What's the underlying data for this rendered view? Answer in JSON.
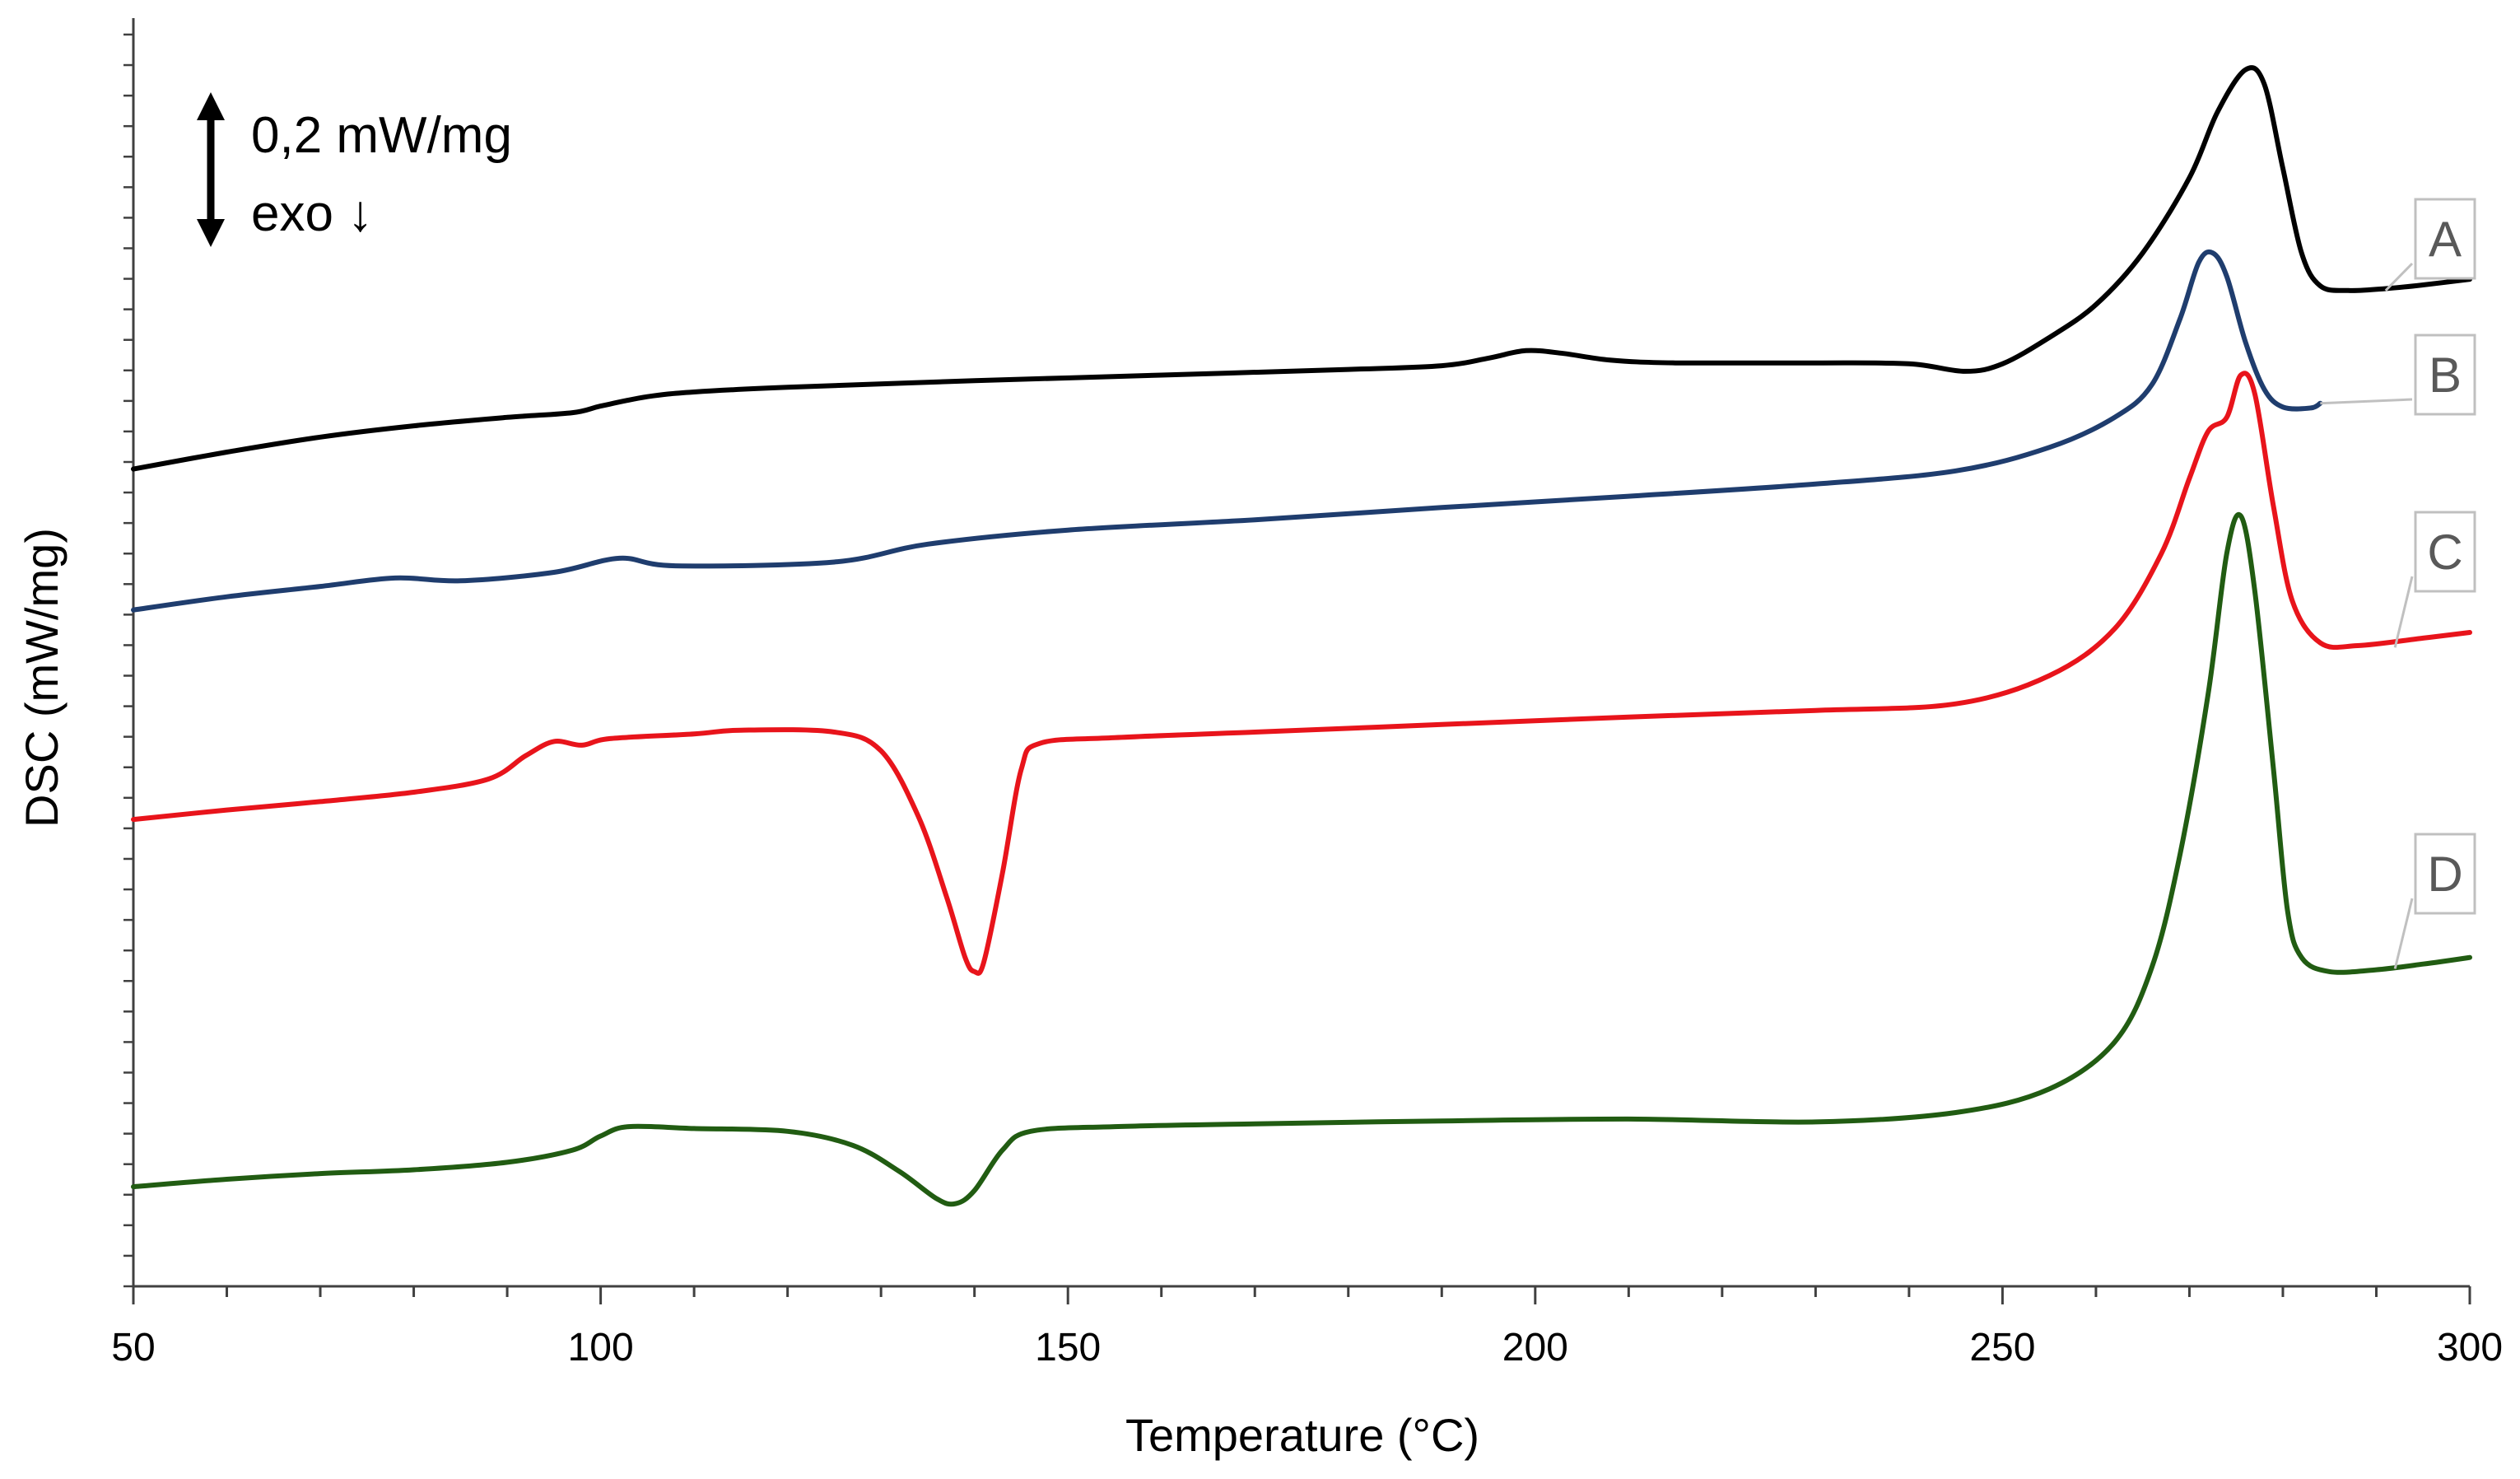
{
  "chart_data": {
    "type": "line",
    "title": "",
    "xlabel": "Temperature (°C)",
    "ylabel": "DSC (mW/mg)",
    "xlim": [
      50,
      300
    ],
    "ylim": [
      0,
      13.5
    ],
    "xticks": [
      50,
      100,
      150,
      200,
      250,
      300
    ],
    "x_minor_step": 10,
    "y_minor_step": 0.325,
    "grid": false,
    "legend": "none",
    "scale_bar": {
      "label": "0,2 mW/mg",
      "exo_label": "exo ↓"
    },
    "series": [
      {
        "name": "A",
        "color": "#000000",
        "points": [
          [
            50,
            8.7
          ],
          [
            60,
            8.88
          ],
          [
            70,
            9.04
          ],
          [
            80,
            9.16
          ],
          [
            90,
            9.25
          ],
          [
            97,
            9.3
          ],
          [
            100,
            9.37
          ],
          [
            105,
            9.47
          ],
          [
            110,
            9.52
          ],
          [
            120,
            9.57
          ],
          [
            140,
            9.64
          ],
          [
            160,
            9.7
          ],
          [
            180,
            9.76
          ],
          [
            190,
            9.8
          ],
          [
            195,
            9.88
          ],
          [
            199,
            9.96
          ],
          [
            203,
            9.93
          ],
          [
            208,
            9.86
          ],
          [
            215,
            9.83
          ],
          [
            230,
            9.83
          ],
          [
            240,
            9.82
          ],
          [
            246,
            9.74
          ],
          [
            250,
            9.82
          ],
          [
            255,
            10.1
          ],
          [
            260,
            10.45
          ],
          [
            265,
            11.0
          ],
          [
            270,
            11.8
          ],
          [
            273,
            12.5
          ],
          [
            276,
            12.95
          ],
          [
            278,
            12.8
          ],
          [
            280,
            11.9
          ],
          [
            282,
            11.0
          ],
          [
            284,
            10.65
          ],
          [
            287,
            10.6
          ],
          [
            291,
            10.62
          ],
          [
            295,
            10.66
          ],
          [
            300,
            10.72
          ]
        ]
      },
      {
        "name": "B",
        "color": "#1f3d6e",
        "points": [
          [
            50,
            7.2
          ],
          [
            60,
            7.34
          ],
          [
            70,
            7.45
          ],
          [
            78,
            7.54
          ],
          [
            85,
            7.51
          ],
          [
            95,
            7.6
          ],
          [
            102,
            7.75
          ],
          [
            108,
            7.67
          ],
          [
            125,
            7.71
          ],
          [
            135,
            7.9
          ],
          [
            150,
            8.05
          ],
          [
            170,
            8.16
          ],
          [
            190,
            8.29
          ],
          [
            210,
            8.41
          ],
          [
            230,
            8.54
          ],
          [
            245,
            8.68
          ],
          [
            255,
            8.93
          ],
          [
            262,
            9.25
          ],
          [
            266,
            9.6
          ],
          [
            269,
            10.3
          ],
          [
            271,
            10.9
          ],
          [
            272.5,
            11.0
          ],
          [
            274,
            10.75
          ],
          [
            276,
            10.05
          ],
          [
            278,
            9.55
          ],
          [
            280,
            9.36
          ],
          [
            283,
            9.35
          ],
          [
            284,
            9.4
          ]
        ]
      },
      {
        "name": "C",
        "color": "#e8141b",
        "points": [
          [
            50,
            4.97
          ],
          [
            60,
            5.07
          ],
          [
            70,
            5.16
          ],
          [
            80,
            5.26
          ],
          [
            88,
            5.4
          ],
          [
            92,
            5.65
          ],
          [
            95,
            5.8
          ],
          [
            98,
            5.76
          ],
          [
            101,
            5.83
          ],
          [
            110,
            5.88
          ],
          [
            115,
            5.92
          ],
          [
            125,
            5.9
          ],
          [
            130,
            5.7
          ],
          [
            134,
            5.0
          ],
          [
            137,
            4.15
          ],
          [
            139,
            3.5
          ],
          [
            140,
            3.35
          ],
          [
            141,
            3.45
          ],
          [
            143,
            4.4
          ],
          [
            145,
            5.5
          ],
          [
            147,
            5.78
          ],
          [
            155,
            5.84
          ],
          [
            170,
            5.9
          ],
          [
            190,
            5.98
          ],
          [
            210,
            6.06
          ],
          [
            230,
            6.13
          ],
          [
            245,
            6.2
          ],
          [
            255,
            6.5
          ],
          [
            262,
            7.0
          ],
          [
            267,
            7.8
          ],
          [
            270,
            8.6
          ],
          [
            272,
            9.1
          ],
          [
            274,
            9.25
          ],
          [
            275.5,
            9.7
          ],
          [
            277,
            9.5
          ],
          [
            279,
            8.3
          ],
          [
            281,
            7.3
          ],
          [
            284,
            6.85
          ],
          [
            288,
            6.82
          ],
          [
            295,
            6.9
          ],
          [
            300,
            6.96
          ]
        ]
      },
      {
        "name": "D",
        "color": "#215c12",
        "points": [
          [
            50,
            1.06
          ],
          [
            60,
            1.14
          ],
          [
            70,
            1.2
          ],
          [
            80,
            1.24
          ],
          [
            90,
            1.32
          ],
          [
            97,
            1.45
          ],
          [
            100,
            1.6
          ],
          [
            103,
            1.7
          ],
          [
            110,
            1.68
          ],
          [
            120,
            1.65
          ],
          [
            127,
            1.5
          ],
          [
            132,
            1.22
          ],
          [
            136,
            0.93
          ],
          [
            138,
            0.88
          ],
          [
            140,
            1.02
          ],
          [
            143,
            1.45
          ],
          [
            146,
            1.65
          ],
          [
            155,
            1.7
          ],
          [
            170,
            1.73
          ],
          [
            190,
            1.76
          ],
          [
            210,
            1.78
          ],
          [
            230,
            1.75
          ],
          [
            245,
            1.85
          ],
          [
            255,
            2.1
          ],
          [
            262,
            2.6
          ],
          [
            266,
            3.4
          ],
          [
            269,
            4.6
          ],
          [
            272,
            6.3
          ],
          [
            274,
            7.8
          ],
          [
            275.5,
            8.2
          ],
          [
            277,
            7.4
          ],
          [
            279,
            5.5
          ],
          [
            280.5,
            4.0
          ],
          [
            282,
            3.5
          ],
          [
            285,
            3.35
          ],
          [
            290,
            3.37
          ],
          [
            295,
            3.43
          ],
          [
            300,
            3.5
          ]
        ]
      }
    ],
    "annotations": [
      {
        "text": "A",
        "series": "A",
        "point": [
          291,
          10.6
        ]
      },
      {
        "text": "B",
        "series": "B",
        "point": [
          284,
          9.4
        ]
      },
      {
        "text": "C",
        "series": "C",
        "point": [
          292,
          6.8
        ]
      },
      {
        "text": "D",
        "series": "D",
        "point": [
          292,
          3.38
        ]
      }
    ]
  }
}
